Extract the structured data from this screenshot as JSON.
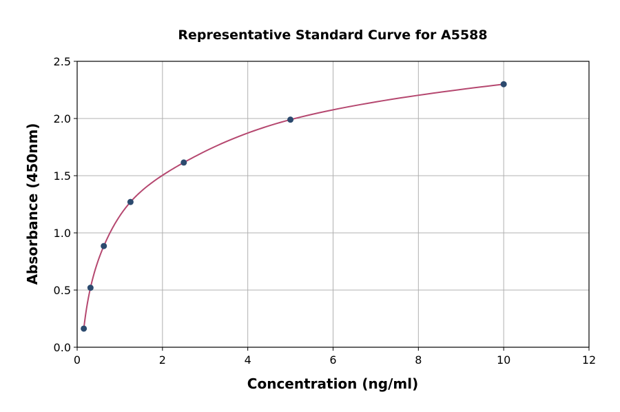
{
  "chart_data": {
    "type": "scatter",
    "title": "Representative Standard Curve for A5588",
    "xlabel": "Concentration (ng/ml)",
    "ylabel": "Absorbance (450nm)",
    "xlim": [
      0,
      12
    ],
    "ylim": [
      0,
      2.5
    ],
    "xticks": [
      "0",
      "2",
      "4",
      "6",
      "8",
      "10",
      "12"
    ],
    "yticks": [
      "0.0",
      "0.5",
      "1.0",
      "1.5",
      "2.0",
      "2.5"
    ],
    "grid": true,
    "points": {
      "x": [
        0.156,
        0.3125,
        0.625,
        1.25,
        2.5,
        5,
        10
      ],
      "y": [
        0.163,
        0.52,
        0.885,
        1.27,
        1.615,
        1.99,
        2.3
      ]
    },
    "fit_curve": true,
    "colors": {
      "points": "#2c4a6e",
      "curve": "#b5476f",
      "grid": "#b0b0b0"
    }
  }
}
